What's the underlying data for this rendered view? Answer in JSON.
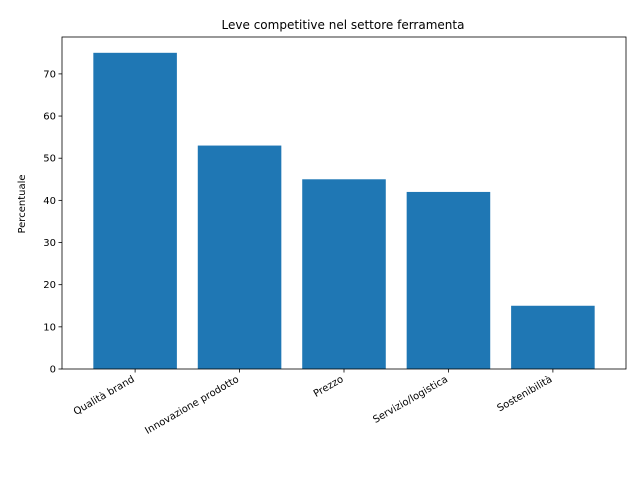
{
  "chart_data": {
    "type": "bar",
    "title": "Leve competitive nel settore ferramenta",
    "xlabel": "",
    "ylabel": "Percentuale",
    "categories": [
      "Qualità brand",
      "Innovazione prodotto",
      "Prezzo",
      "Servizio/logistica",
      "Sostenibilità"
    ],
    "values": [
      75,
      53,
      45,
      42,
      15
    ],
    "ylim": [
      0,
      78.75
    ],
    "yticks": [
      0,
      10,
      20,
      30,
      40,
      50,
      60,
      70
    ],
    "bar_color": "#1f77b4",
    "grid": false,
    "legend": "none"
  }
}
